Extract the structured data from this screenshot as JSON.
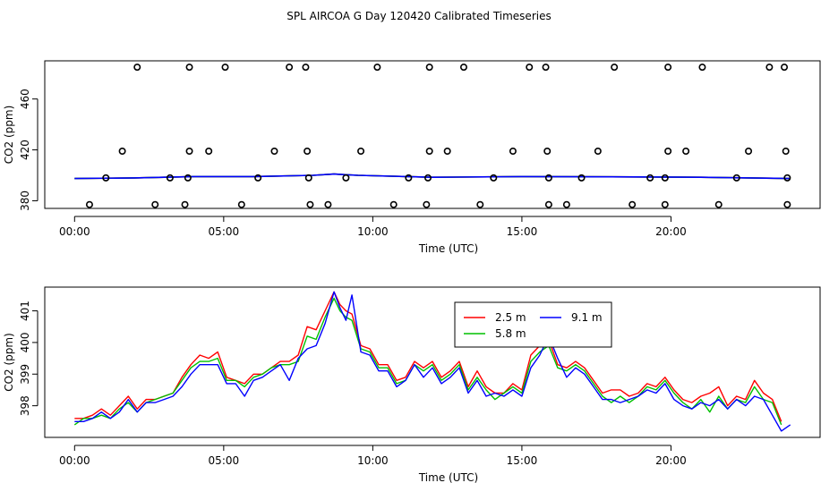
{
  "title": "SPL AIRCOA G  Day 120420  Calibrated Timeseries",
  "chart_data": [
    {
      "type": "line",
      "xlabel": "Time (UTC)",
      "ylabel": "CO2 (ppm)",
      "xlim": [
        -1,
        25
      ],
      "ylim": [
        374,
        490
      ],
      "xticks": [
        0,
        5,
        10,
        15,
        20
      ],
      "xtick_labels": [
        "00:00",
        "05:00",
        "10:00",
        "15:00",
        "20:00"
      ],
      "yticks": [
        380,
        420,
        460
      ],
      "ytick_labels": [
        "380",
        "420",
        "460"
      ],
      "series": [
        {
          "color": "#ff0000",
          "x": [
            0,
            2,
            4,
            6,
            8,
            8.7,
            9.5,
            12,
            15,
            18,
            21,
            24
          ],
          "y": [
            397.5,
            398,
            399,
            399,
            400,
            401,
            400,
            398.5,
            399,
            398.8,
            398.5,
            397.5
          ]
        },
        {
          "color": "#00c000",
          "x": [
            0,
            2,
            4,
            6,
            8,
            8.7,
            9.5,
            12,
            15,
            18,
            21,
            24
          ],
          "y": [
            397.5,
            398,
            399,
            399,
            400,
            401,
            400,
            398.5,
            399,
            398.8,
            398.5,
            397.5
          ]
        },
        {
          "color": "#0000ff",
          "x": [
            0,
            2,
            4,
            6,
            8,
            8.7,
            9.5,
            12,
            15,
            18,
            21,
            24
          ],
          "y": [
            397.5,
            398,
            399,
            399,
            400,
            401,
            400,
            398.5,
            399,
            398.8,
            398.5,
            397.5
          ]
        }
      ],
      "markers": {
        "style": "open-circle",
        "points": [
          [
            2.1,
            485
          ],
          [
            3.85,
            485
          ],
          [
            5.05,
            485
          ],
          [
            7.2,
            485
          ],
          [
            7.75,
            485
          ],
          [
            10.15,
            485
          ],
          [
            11.9,
            485
          ],
          [
            13.05,
            485
          ],
          [
            15.25,
            485
          ],
          [
            15.8,
            485
          ],
          [
            18.1,
            485
          ],
          [
            19.9,
            485
          ],
          [
            21.05,
            485
          ],
          [
            23.3,
            485
          ],
          [
            23.8,
            485
          ],
          [
            1.6,
            419
          ],
          [
            3.85,
            419
          ],
          [
            4.5,
            419
          ],
          [
            6.7,
            419
          ],
          [
            7.8,
            419
          ],
          [
            9.6,
            419
          ],
          [
            11.9,
            419
          ],
          [
            12.5,
            419
          ],
          [
            14.7,
            419
          ],
          [
            15.85,
            419
          ],
          [
            17.55,
            419
          ],
          [
            19.9,
            419
          ],
          [
            20.5,
            419
          ],
          [
            22.6,
            419
          ],
          [
            23.85,
            419
          ],
          [
            1.05,
            398
          ],
          [
            3.2,
            398
          ],
          [
            3.8,
            398
          ],
          [
            6.15,
            398
          ],
          [
            7.85,
            398
          ],
          [
            9.1,
            398
          ],
          [
            11.2,
            398
          ],
          [
            11.85,
            398
          ],
          [
            14.05,
            398
          ],
          [
            15.9,
            398
          ],
          [
            17.0,
            398
          ],
          [
            19.3,
            398
          ],
          [
            19.8,
            398
          ],
          [
            22.2,
            398
          ],
          [
            23.9,
            398
          ],
          [
            0.5,
            377
          ],
          [
            2.7,
            377
          ],
          [
            3.7,
            377
          ],
          [
            5.6,
            377
          ],
          [
            7.9,
            377
          ],
          [
            8.5,
            377
          ],
          [
            10.7,
            377
          ],
          [
            11.8,
            377
          ],
          [
            13.6,
            377
          ],
          [
            15.9,
            377
          ],
          [
            16.5,
            377
          ],
          [
            18.7,
            377
          ],
          [
            19.8,
            377
          ],
          [
            21.6,
            377
          ],
          [
            23.9,
            377
          ]
        ]
      }
    },
    {
      "type": "line",
      "xlabel": "Time (UTC)",
      "ylabel": "CO2 (ppm)",
      "xlim": [
        -1,
        25
      ],
      "ylim": [
        397.0,
        401.75
      ],
      "xticks": [
        0,
        5,
        10,
        15,
        20
      ],
      "xtick_labels": [
        "00:00",
        "05:00",
        "10:00",
        "15:00",
        "20:00"
      ],
      "yticks": [
        398,
        399,
        400,
        401
      ],
      "ytick_labels": [
        "398",
        "399",
        "400",
        "401"
      ],
      "legend": {
        "placement": "top-center",
        "entries": [
          "2.5 m",
          "5.8 m",
          "9.1 m"
        ]
      },
      "series": [
        {
          "name": "2.5 m",
          "color": "#ff0000",
          "x": [
            0,
            0.3,
            0.6,
            0.9,
            1.2,
            1.5,
            1.8,
            2.1,
            2.4,
            2.7,
            3.0,
            3.3,
            3.6,
            3.9,
            4.2,
            4.5,
            4.8,
            5.1,
            5.4,
            5.7,
            6.0,
            6.3,
            6.6,
            6.9,
            7.2,
            7.5,
            7.8,
            8.1,
            8.4,
            8.7,
            8.9,
            9.1,
            9.3,
            9.6,
            9.9,
            10.2,
            10.5,
            10.8,
            11.1,
            11.4,
            11.7,
            12.0,
            12.3,
            12.6,
            12.9,
            13.2,
            13.5,
            13.8,
            14.1,
            14.4,
            14.7,
            15.0,
            15.3,
            15.6,
            15.9,
            16.2,
            16.5,
            16.8,
            17.1,
            17.4,
            17.7,
            18.0,
            18.3,
            18.6,
            18.9,
            19.2,
            19.5,
            19.8,
            20.1,
            20.4,
            20.7,
            21.0,
            21.3,
            21.6,
            21.9,
            22.2,
            22.5,
            22.8,
            23.1,
            23.4,
            23.7
          ],
          "y": [
            397.6,
            397.6,
            397.7,
            397.9,
            397.7,
            398.0,
            398.3,
            397.9,
            398.2,
            398.2,
            398.3,
            398.4,
            398.9,
            399.3,
            399.6,
            399.5,
            399.7,
            398.9,
            398.8,
            398.7,
            399.0,
            399.0,
            399.2,
            399.4,
            399.4,
            399.6,
            400.5,
            400.4,
            401.0,
            401.6,
            401.2,
            401.0,
            400.9,
            399.9,
            399.8,
            399.3,
            399.3,
            398.8,
            398.9,
            399.4,
            399.2,
            399.4,
            398.9,
            399.1,
            399.4,
            398.6,
            399.1,
            398.6,
            398.4,
            398.4,
            398.7,
            398.5,
            399.6,
            399.9,
            400.1,
            399.3,
            399.2,
            399.4,
            399.2,
            398.8,
            398.4,
            398.5,
            398.5,
            398.3,
            398.4,
            398.7,
            398.6,
            398.9,
            398.5,
            398.2,
            398.1,
            398.3,
            398.4,
            398.6,
            398.0,
            398.3,
            398.2,
            398.8,
            398.4,
            398.2,
            397.5
          ]
        },
        {
          "name": "5.8 m",
          "color": "#00c000",
          "x": [
            0,
            0.3,
            0.6,
            0.9,
            1.2,
            1.5,
            1.8,
            2.1,
            2.4,
            2.7,
            3.0,
            3.3,
            3.6,
            3.9,
            4.2,
            4.5,
            4.8,
            5.1,
            5.4,
            5.7,
            6.0,
            6.3,
            6.6,
            6.9,
            7.2,
            7.5,
            7.8,
            8.1,
            8.4,
            8.7,
            8.9,
            9.1,
            9.3,
            9.6,
            9.9,
            10.2,
            10.5,
            10.8,
            11.1,
            11.4,
            11.7,
            12.0,
            12.3,
            12.6,
            12.9,
            13.2,
            13.5,
            13.8,
            14.1,
            14.4,
            14.7,
            15.0,
            15.3,
            15.6,
            15.9,
            16.2,
            16.5,
            16.8,
            17.1,
            17.4,
            17.7,
            18.0,
            18.3,
            18.6,
            18.9,
            19.2,
            19.5,
            19.8,
            20.1,
            20.4,
            20.7,
            21.0,
            21.3,
            21.6,
            21.9,
            22.2,
            22.5,
            22.8,
            23.1,
            23.4,
            23.7
          ],
          "y": [
            397.4,
            397.6,
            397.6,
            397.7,
            397.6,
            397.9,
            398.1,
            397.8,
            398.1,
            398.2,
            398.3,
            398.4,
            398.8,
            399.2,
            399.4,
            399.4,
            399.5,
            398.8,
            398.8,
            398.6,
            398.9,
            399.0,
            399.2,
            399.3,
            399.3,
            399.4,
            400.2,
            400.1,
            400.8,
            401.4,
            401.0,
            400.8,
            400.7,
            399.8,
            399.7,
            399.2,
            399.2,
            398.7,
            398.8,
            399.3,
            399.1,
            399.3,
            398.8,
            399.0,
            399.3,
            398.5,
            398.9,
            398.5,
            398.2,
            398.4,
            398.6,
            398.4,
            399.4,
            399.7,
            399.9,
            399.2,
            399.1,
            399.3,
            399.1,
            398.7,
            398.3,
            398.1,
            398.3,
            398.1,
            398.3,
            398.6,
            398.5,
            398.8,
            398.4,
            398.1,
            397.9,
            398.2,
            397.8,
            398.3,
            397.9,
            398.2,
            398.1,
            398.6,
            398.2,
            398.1,
            397.4
          ]
        },
        {
          "name": "9.1 m",
          "color": "#0000ff",
          "x": [
            0,
            0.3,
            0.6,
            0.9,
            1.2,
            1.5,
            1.8,
            2.1,
            2.4,
            2.7,
            3.0,
            3.3,
            3.6,
            3.9,
            4.2,
            4.5,
            4.8,
            5.1,
            5.4,
            5.7,
            6.0,
            6.3,
            6.6,
            6.9,
            7.2,
            7.5,
            7.8,
            8.1,
            8.4,
            8.7,
            8.9,
            9.1,
            9.3,
            9.6,
            9.9,
            10.2,
            10.5,
            10.8,
            11.1,
            11.4,
            11.7,
            12.0,
            12.3,
            12.6,
            12.9,
            13.2,
            13.5,
            13.8,
            14.1,
            14.4,
            14.7,
            15.0,
            15.3,
            15.6,
            15.9,
            16.2,
            16.5,
            16.8,
            17.1,
            17.4,
            17.7,
            18.0,
            18.3,
            18.6,
            18.9,
            19.2,
            19.5,
            19.8,
            20.1,
            20.4,
            20.7,
            21.0,
            21.3,
            21.6,
            21.9,
            22.2,
            22.5,
            22.8,
            23.1,
            23.4,
            23.7,
            24.0
          ],
          "y": [
            397.5,
            397.5,
            397.6,
            397.8,
            397.6,
            397.8,
            398.2,
            397.8,
            398.1,
            398.1,
            398.2,
            398.3,
            398.6,
            399.0,
            399.3,
            399.3,
            399.3,
            398.7,
            398.7,
            398.3,
            398.8,
            398.9,
            399.1,
            399.3,
            398.8,
            399.5,
            399.8,
            399.9,
            400.6,
            401.6,
            401.1,
            400.7,
            401.5,
            399.7,
            399.6,
            399.1,
            399.1,
            398.6,
            398.8,
            399.3,
            398.9,
            399.2,
            398.7,
            398.9,
            399.2,
            398.4,
            398.8,
            398.3,
            398.4,
            398.3,
            398.5,
            398.3,
            399.2,
            399.6,
            400.2,
            399.5,
            398.9,
            399.2,
            399.0,
            398.6,
            398.2,
            398.2,
            398.1,
            398.2,
            398.3,
            398.5,
            398.4,
            398.7,
            398.2,
            398.0,
            397.9,
            398.1,
            398.0,
            398.2,
            397.9,
            398.2,
            398.0,
            398.3,
            398.2,
            397.7,
            397.2,
            397.4
          ]
        }
      ]
    }
  ]
}
